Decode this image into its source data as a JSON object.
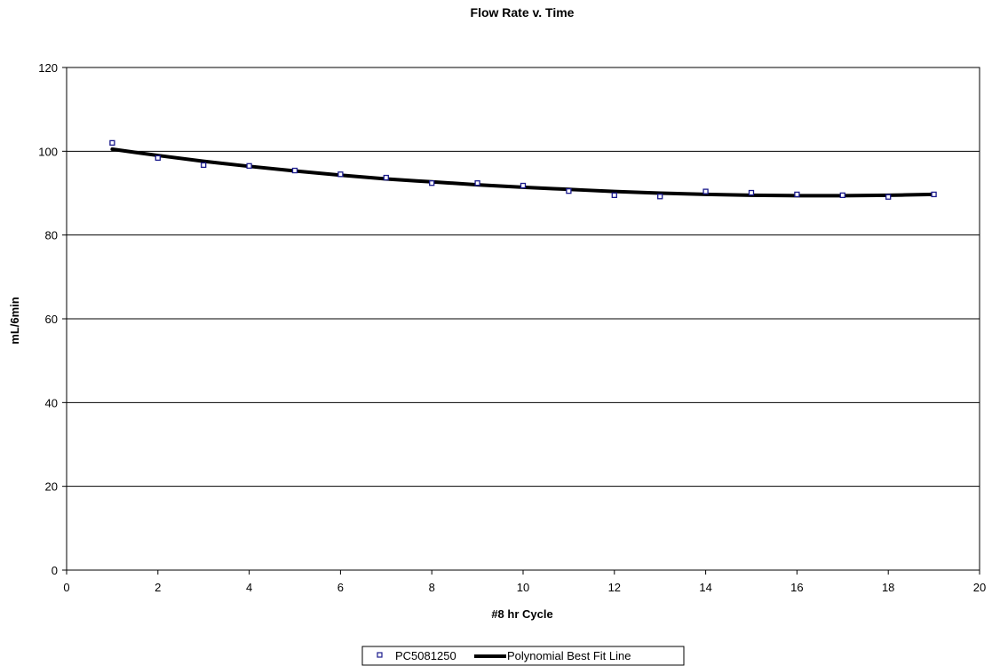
{
  "chart_data": {
    "type": "scatter",
    "title": "Flow Rate v. Time",
    "xlabel": "#8 hr Cycle",
    "ylabel": "mL/6min",
    "xlim": [
      0,
      20
    ],
    "ylim": [
      0,
      120
    ],
    "xticks": [
      0,
      2,
      4,
      6,
      8,
      10,
      12,
      14,
      16,
      18,
      20
    ],
    "yticks": [
      0,
      20,
      40,
      60,
      80,
      100,
      120
    ],
    "grid": "horizontal",
    "legend_position": "bottom-center",
    "series": [
      {
        "name": "PC5081250",
        "kind": "scatter",
        "marker": "hollow-square",
        "color": "#1a1a8c",
        "x": [
          1,
          2,
          3,
          4,
          5,
          6,
          7,
          8,
          9,
          10,
          11,
          12,
          13,
          14,
          15,
          16,
          17,
          18,
          19
        ],
        "y": [
          102.0,
          98.4,
          96.7,
          96.5,
          95.4,
          94.5,
          93.7,
          92.4,
          92.4,
          91.8,
          90.5,
          89.5,
          89.2,
          90.4,
          90.1,
          89.7,
          89.5,
          89.1,
          89.7
        ]
      },
      {
        "name": "Polynomial Best Fit Line",
        "kind": "line",
        "color": "#000000",
        "x": [
          1,
          2,
          3,
          4,
          5,
          6,
          7,
          8,
          9,
          10,
          11,
          12,
          13,
          14,
          15,
          16,
          17,
          18,
          19
        ],
        "y": [
          100.5,
          99.0,
          97.6,
          96.4,
          95.3,
          94.3,
          93.4,
          92.7,
          92.0,
          91.4,
          90.9,
          90.4,
          90.0,
          89.7,
          89.5,
          89.4,
          89.4,
          89.5,
          89.7
        ]
      }
    ]
  }
}
